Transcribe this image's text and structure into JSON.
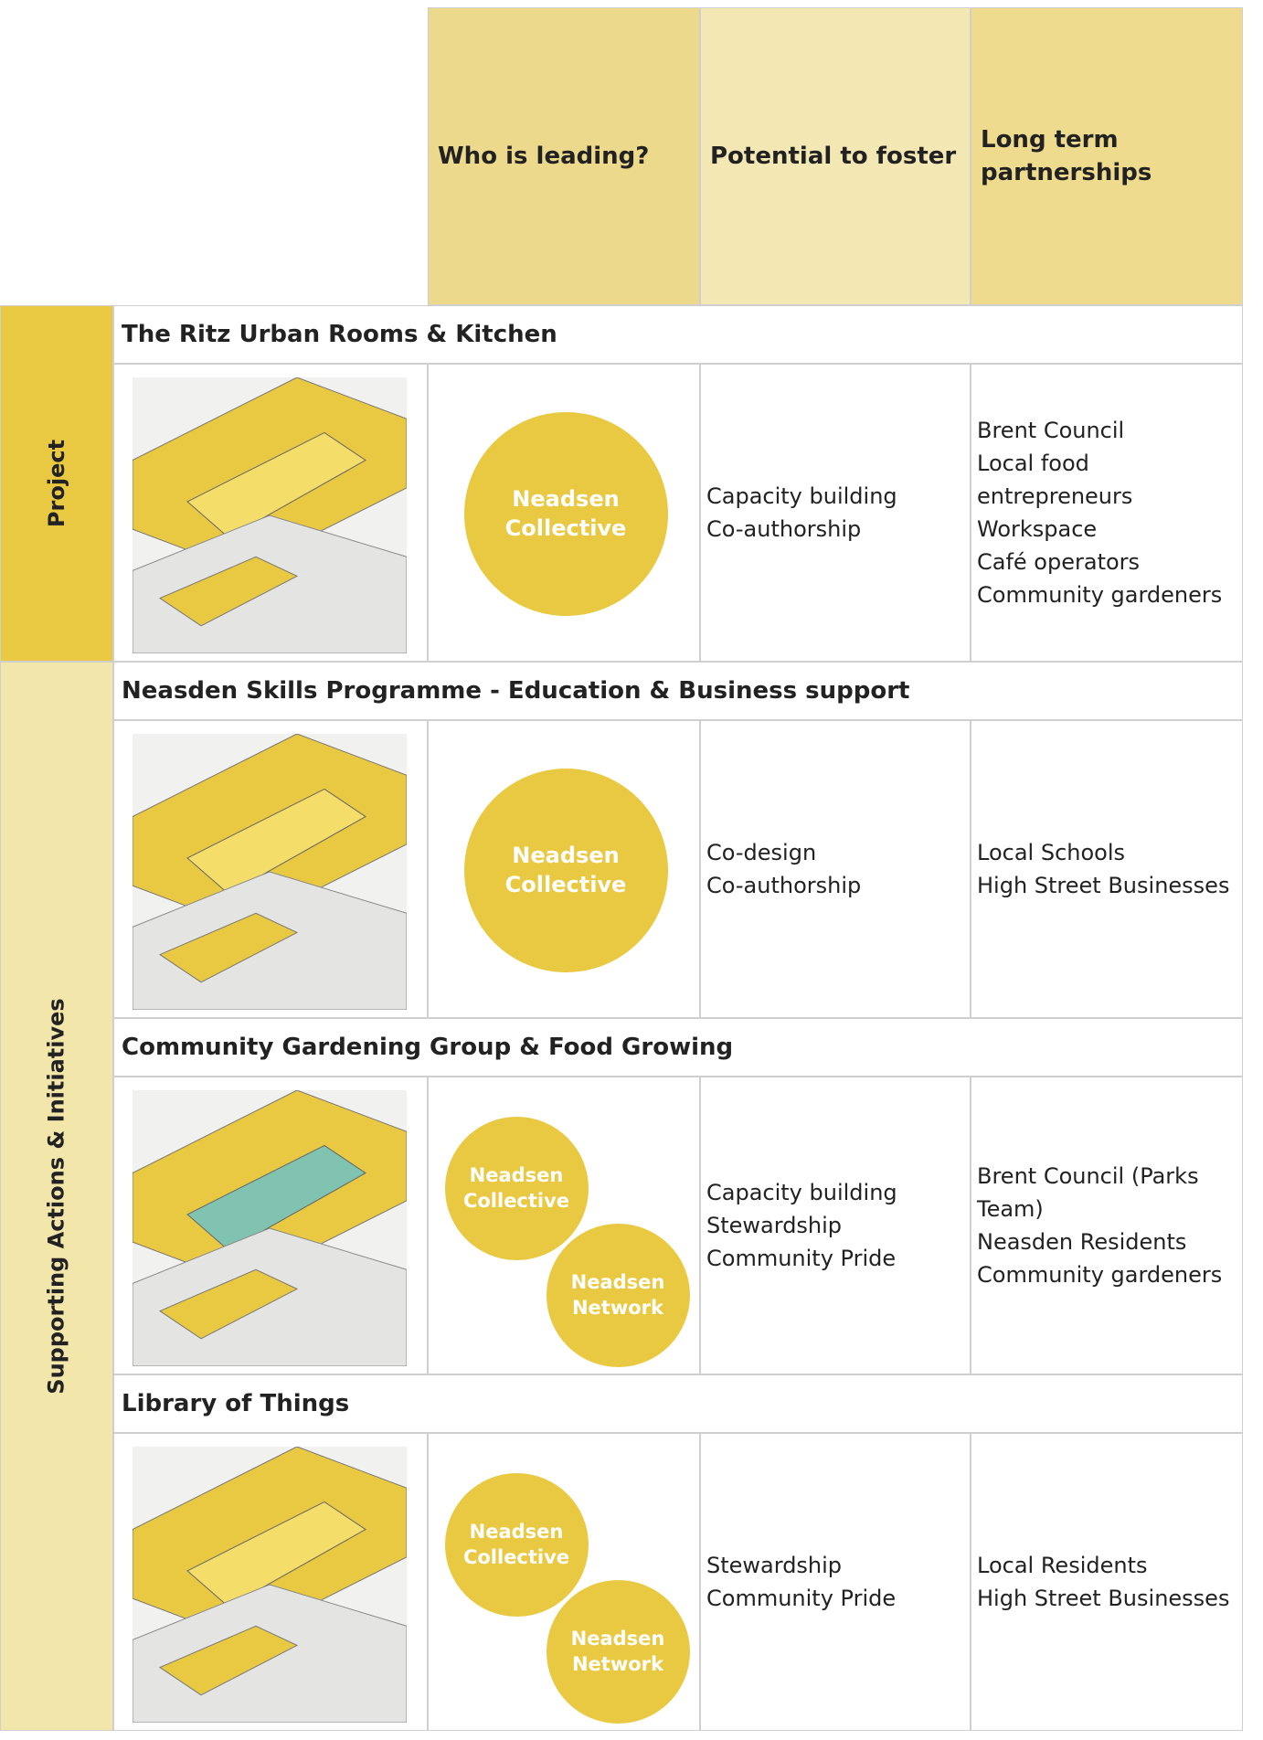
{
  "header": {
    "columns": [
      "Who is leading?",
      "Potential to foster",
      "Long term partnerships"
    ]
  },
  "sections": [
    {
      "label": "Project",
      "items": [
        {
          "title": "The Ritz Urban Rooms & Kitchen",
          "leaders": [
            "Neadsen Collective"
          ],
          "potential": [
            "Capacity building",
            "Co-authorship"
          ],
          "partnerships": [
            "Brent Council",
            "Local food entrepreneurs",
            "Workspace",
            "Café operators",
            "Community gardeners"
          ]
        }
      ]
    },
    {
      "label": "Supporting Actions & Initiatives",
      "items": [
        {
          "title": "Neasden Skills Programme - Education & Business support",
          "leaders": [
            "Neadsen Collective"
          ],
          "potential": [
            "Co-design",
            "Co-authorship"
          ],
          "partnerships": [
            "Local Schools",
            "High Street Businesses"
          ]
        },
        {
          "title": "Community Gardening Group & Food Growing",
          "leaders": [
            "Neadsen Collective",
            "Neadsen Network"
          ],
          "potential": [
            "Capacity building",
            "Stewardship",
            "Community Pride"
          ],
          "partnerships": [
            "Brent Council (Parks Team)",
            "Neasden Residents",
            "Community gardeners"
          ]
        },
        {
          "title": "Library of Things",
          "leaders": [
            "Neadsen Collective",
            "Neadsen Network"
          ],
          "potential": [
            "Stewardship",
            "Community Pride"
          ],
          "partnerships": [
            "Local Residents",
            "High Street Businesses"
          ]
        }
      ]
    }
  ]
}
